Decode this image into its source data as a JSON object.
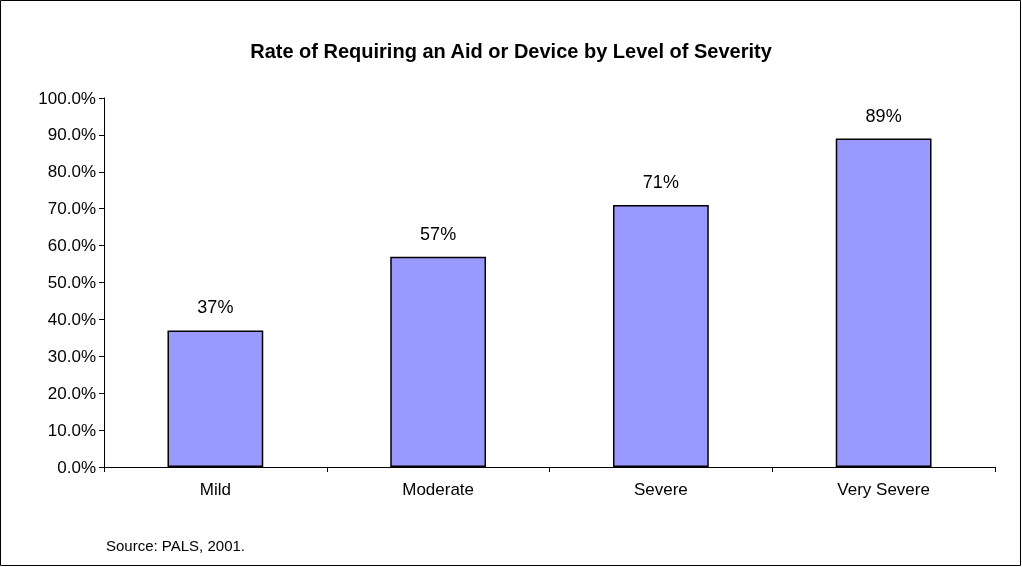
{
  "chart_data": {
    "type": "bar",
    "title": "Rate of Requiring an Aid or Device by Level of Severity",
    "categories": [
      "Mild",
      "Moderate",
      "Severe",
      "Very Severe"
    ],
    "values": [
      37,
      57,
      71,
      89
    ],
    "value_labels": [
      "37%",
      "57%",
      "71%",
      "89%"
    ],
    "color": "#9999ff",
    "ylim": [
      0,
      100
    ],
    "yticks": [
      {
        "value": 0,
        "label": "0.0%"
      },
      {
        "value": 10,
        "label": "10.0%"
      },
      {
        "value": 20,
        "label": "20.0%"
      },
      {
        "value": 30,
        "label": "30.0%"
      },
      {
        "value": 40,
        "label": "40.0%"
      },
      {
        "value": 50,
        "label": "50.0%"
      },
      {
        "value": 60,
        "label": "60.0%"
      },
      {
        "value": 70,
        "label": "70.0%"
      },
      {
        "value": 80,
        "label": "80.0%"
      },
      {
        "value": 90,
        "label": "90.0%"
      },
      {
        "value": 100,
        "label": "100.0%"
      }
    ],
    "grid": false,
    "annotations": [
      "Source: PALS, 2001."
    ]
  }
}
